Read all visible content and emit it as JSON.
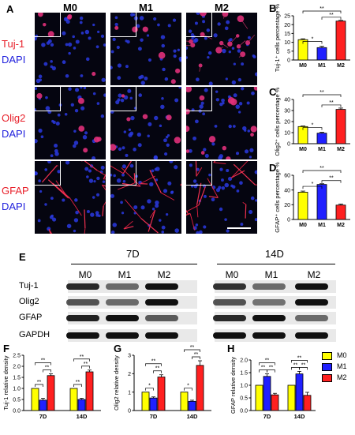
{
  "panel_labels": {
    "A": "A",
    "B": "B",
    "C": "C",
    "D": "D",
    "E": "E",
    "F": "F",
    "G": "G",
    "H": "H"
  },
  "columns": [
    "M0",
    "M1",
    "M2"
  ],
  "row_labels": [
    {
      "marker": "Tuj-1",
      "stain": "DAPI"
    },
    {
      "marker": "Olig2",
      "stain": "DAPI"
    },
    {
      "marker": "GFAP",
      "stain": "DAPI"
    }
  ],
  "blot": {
    "group1": "7D",
    "group2": "14D",
    "lanes": [
      "M0",
      "M1",
      "M2"
    ],
    "proteins": [
      "Tuj-1",
      "Olig2",
      "GFAP",
      "GAPDH"
    ]
  },
  "legend": [
    {
      "label": "M0",
      "color": "#ffff00"
    },
    {
      "label": "M1",
      "color": "#2020ff"
    },
    {
      "label": "M2",
      "color": "#ff2020"
    }
  ],
  "colors": {
    "M0": "#ffff00",
    "M1": "#2020ff",
    "M2": "#ff2020"
  },
  "chart_data": [
    {
      "panel": "B",
      "type": "bar",
      "categories": [
        "M0",
        "M1",
        "M2"
      ],
      "values": [
        11.5,
        7.0,
        22.0
      ],
      "errors": [
        0.5,
        0.8,
        0.4
      ],
      "ylabel": "Tuj-1⁺ cells percentage %",
      "ylim": [
        0,
        25
      ],
      "yticks": [
        0,
        5,
        10,
        15,
        20,
        25
      ],
      "sig": [
        {
          "from": 0,
          "to": 1,
          "label": "*"
        },
        {
          "from": 1,
          "to": 2,
          "label": "**"
        },
        {
          "from": 0,
          "to": 2,
          "label": "**"
        }
      ]
    },
    {
      "panel": "C",
      "type": "bar",
      "categories": [
        "M0",
        "M1",
        "M2"
      ],
      "values": [
        15.5,
        9.5,
        31.0
      ],
      "errors": [
        0.5,
        0.8,
        1.2
      ],
      "ylabel": "Olig2⁺ cells percentage %",
      "ylim": [
        0,
        40
      ],
      "yticks": [
        0,
        10,
        20,
        30,
        40
      ],
      "sig": [
        {
          "from": 0,
          "to": 1,
          "label": "*"
        },
        {
          "from": 1,
          "to": 2,
          "label": "**"
        },
        {
          "from": 0,
          "to": 2,
          "label": "**"
        }
      ]
    },
    {
      "panel": "D",
      "type": "bar",
      "categories": [
        "M0",
        "M1",
        "M2"
      ],
      "values": [
        37.0,
        47.5,
        19.5
      ],
      "errors": [
        1.5,
        1.0,
        1.5
      ],
      "ylabel": "GFAP⁺ cells percentage %",
      "ylim": [
        0,
        60
      ],
      "yticks": [
        0,
        20,
        40,
        60
      ],
      "sig": [
        {
          "from": 0,
          "to": 1,
          "label": "*"
        },
        {
          "from": 1,
          "to": 2,
          "label": "**"
        },
        {
          "from": 0,
          "to": 2,
          "label": "**"
        }
      ]
    },
    {
      "panel": "F",
      "type": "bar",
      "groups": [
        "7D",
        "14D"
      ],
      "series": [
        {
          "name": "M0",
          "values": [
            1.0,
            1.0
          ],
          "errors": [
            0,
            0
          ]
        },
        {
          "name": "M1",
          "values": [
            0.47,
            0.5
          ],
          "errors": [
            0.08,
            0.05
          ]
        },
        {
          "name": "M2",
          "values": [
            1.58,
            1.75
          ],
          "errors": [
            0.08,
            0.08
          ]
        }
      ],
      "ylabel": "Tuj-1 relative density",
      "ylim": [
        0,
        2.5
      ],
      "yticks": [
        0.0,
        0.5,
        1.0,
        1.5,
        2.0,
        2.5
      ],
      "sig": [
        {
          "group": 0,
          "from": 0,
          "to": 1,
          "label": "**"
        },
        {
          "group": 0,
          "from": 1,
          "to": 2,
          "label": "**"
        },
        {
          "group": 0,
          "from": 0,
          "to": 2,
          "label": "**"
        },
        {
          "group": 1,
          "from": 0,
          "to": 1,
          "label": "**"
        },
        {
          "group": 1,
          "from": 1,
          "to": 2,
          "label": "**"
        },
        {
          "group": 1,
          "from": 0,
          "to": 2,
          "label": "**"
        }
      ]
    },
    {
      "panel": "G",
      "type": "bar",
      "groups": [
        "7D",
        "14D"
      ],
      "series": [
        {
          "name": "M0",
          "values": [
            1.0,
            1.0
          ],
          "errors": [
            0,
            0
          ]
        },
        {
          "name": "M1",
          "values": [
            0.68,
            0.5
          ],
          "errors": [
            0.06,
            0.06
          ]
        },
        {
          "name": "M2",
          "values": [
            1.82,
            2.45
          ],
          "errors": [
            0.12,
            0.25
          ]
        }
      ],
      "ylabel": "Olig2 relative density",
      "ylim": [
        0,
        3
      ],
      "yticks": [
        0,
        1,
        2,
        3
      ],
      "sig": [
        {
          "group": 0,
          "from": 0,
          "to": 1,
          "label": "*"
        },
        {
          "group": 0,
          "from": 1,
          "to": 2,
          "label": "**"
        },
        {
          "group": 0,
          "from": 0,
          "to": 2,
          "label": "**"
        },
        {
          "group": 1,
          "from": 0,
          "to": 1,
          "label": "*"
        },
        {
          "group": 1,
          "from": 1,
          "to": 2,
          "label": "**"
        },
        {
          "group": 1,
          "from": 0,
          "to": 2,
          "label": "**"
        }
      ]
    },
    {
      "panel": "H",
      "type": "bar",
      "groups": [
        "7D",
        "14D"
      ],
      "series": [
        {
          "name": "M0",
          "values": [
            1.0,
            1.0
          ],
          "errors": [
            0,
            0
          ]
        },
        {
          "name": "M1",
          "values": [
            1.35,
            1.45
          ],
          "errors": [
            0.1,
            0.1
          ]
        },
        {
          "name": "M2",
          "values": [
            0.62,
            0.6
          ],
          "errors": [
            0.06,
            0.12
          ]
        }
      ],
      "ylabel": "GFAP relative density",
      "ylim": [
        0,
        2.0
      ],
      "yticks": [
        0.0,
        0.5,
        1.0,
        1.5,
        2.0
      ],
      "sig": [
        {
          "group": 0,
          "from": 0,
          "to": 1,
          "label": "**"
        },
        {
          "group": 0,
          "from": 1,
          "to": 2,
          "label": "**"
        },
        {
          "group": 0,
          "from": 0,
          "to": 2,
          "label": "**"
        },
        {
          "group": 1,
          "from": 0,
          "to": 1,
          "label": "**"
        },
        {
          "group": 1,
          "from": 1,
          "to": 2,
          "label": "**"
        },
        {
          "group": 1,
          "from": 0,
          "to": 2,
          "label": "**"
        }
      ]
    }
  ]
}
